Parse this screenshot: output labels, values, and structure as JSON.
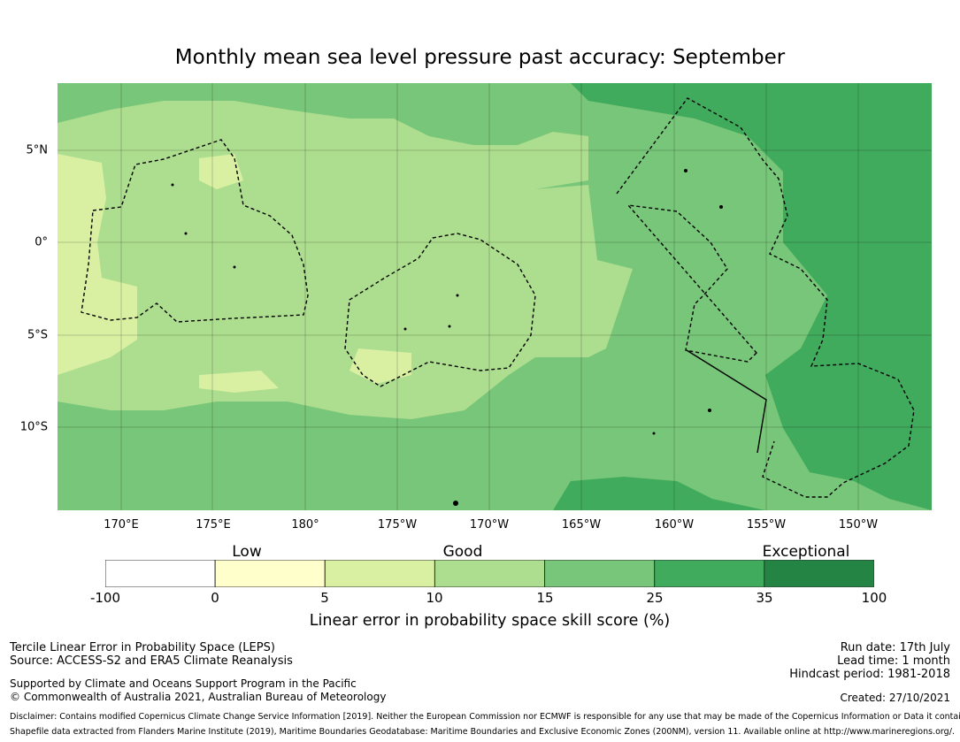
{
  "title": "Monthly mean sea level pressure past accuracy: September",
  "map": {
    "lat_labels": [
      "5°N",
      "0°",
      "5°S",
      "10°S"
    ],
    "lon_labels": [
      "170°E",
      "175°E",
      "180°",
      "175°W",
      "170°W",
      "165°W",
      "160°W",
      "155°W",
      "150°W"
    ]
  },
  "colorbar": {
    "categories": [
      "Low",
      "Good",
      "Exceptional"
    ],
    "tick_labels": [
      "-100",
      "0",
      "5",
      "10",
      "15",
      "25",
      "35",
      "100"
    ],
    "colors": [
      "#ffffff",
      "#ffffcc",
      "#d9f0a3",
      "#addd8e",
      "#78c679",
      "#41ab5d",
      "#238443"
    ],
    "label": "Linear error in probability space skill score (%)"
  },
  "footer": {
    "left_line1": "Tercile Linear Error in Probability Space (LEPS)",
    "left_line2": "Source: ACCESS-S2 and ERA5 Climate Reanalysis",
    "left_line3": "Supported by Climate and Oceans Support Program in the Pacific",
    "left_line4": "© Commonwealth of Australia 2021, Australian Bureau of Meteorology",
    "right_line1": "Run date: 17th July",
    "right_line2": "Lead time: 1 month",
    "right_line3": "Hindcast period: 1981-2018",
    "created": "Created: 27/10/2021",
    "disclaimer1": "Disclaimer: Contains modified Copernicus Climate Change Service Information [2019]. Neither the European Commission nor ECMWF is responsible for any use that may be made of the Copernicus Information or Data it contains.",
    "disclaimer2": "Shapefile data extracted from Flanders Marine Institute (2019), Maritime Boundaries Geodatabase: Maritime Boundaries and Exclusive Economic Zones (200NM), version 11. Available online at http://www.marineregions.org/."
  }
}
